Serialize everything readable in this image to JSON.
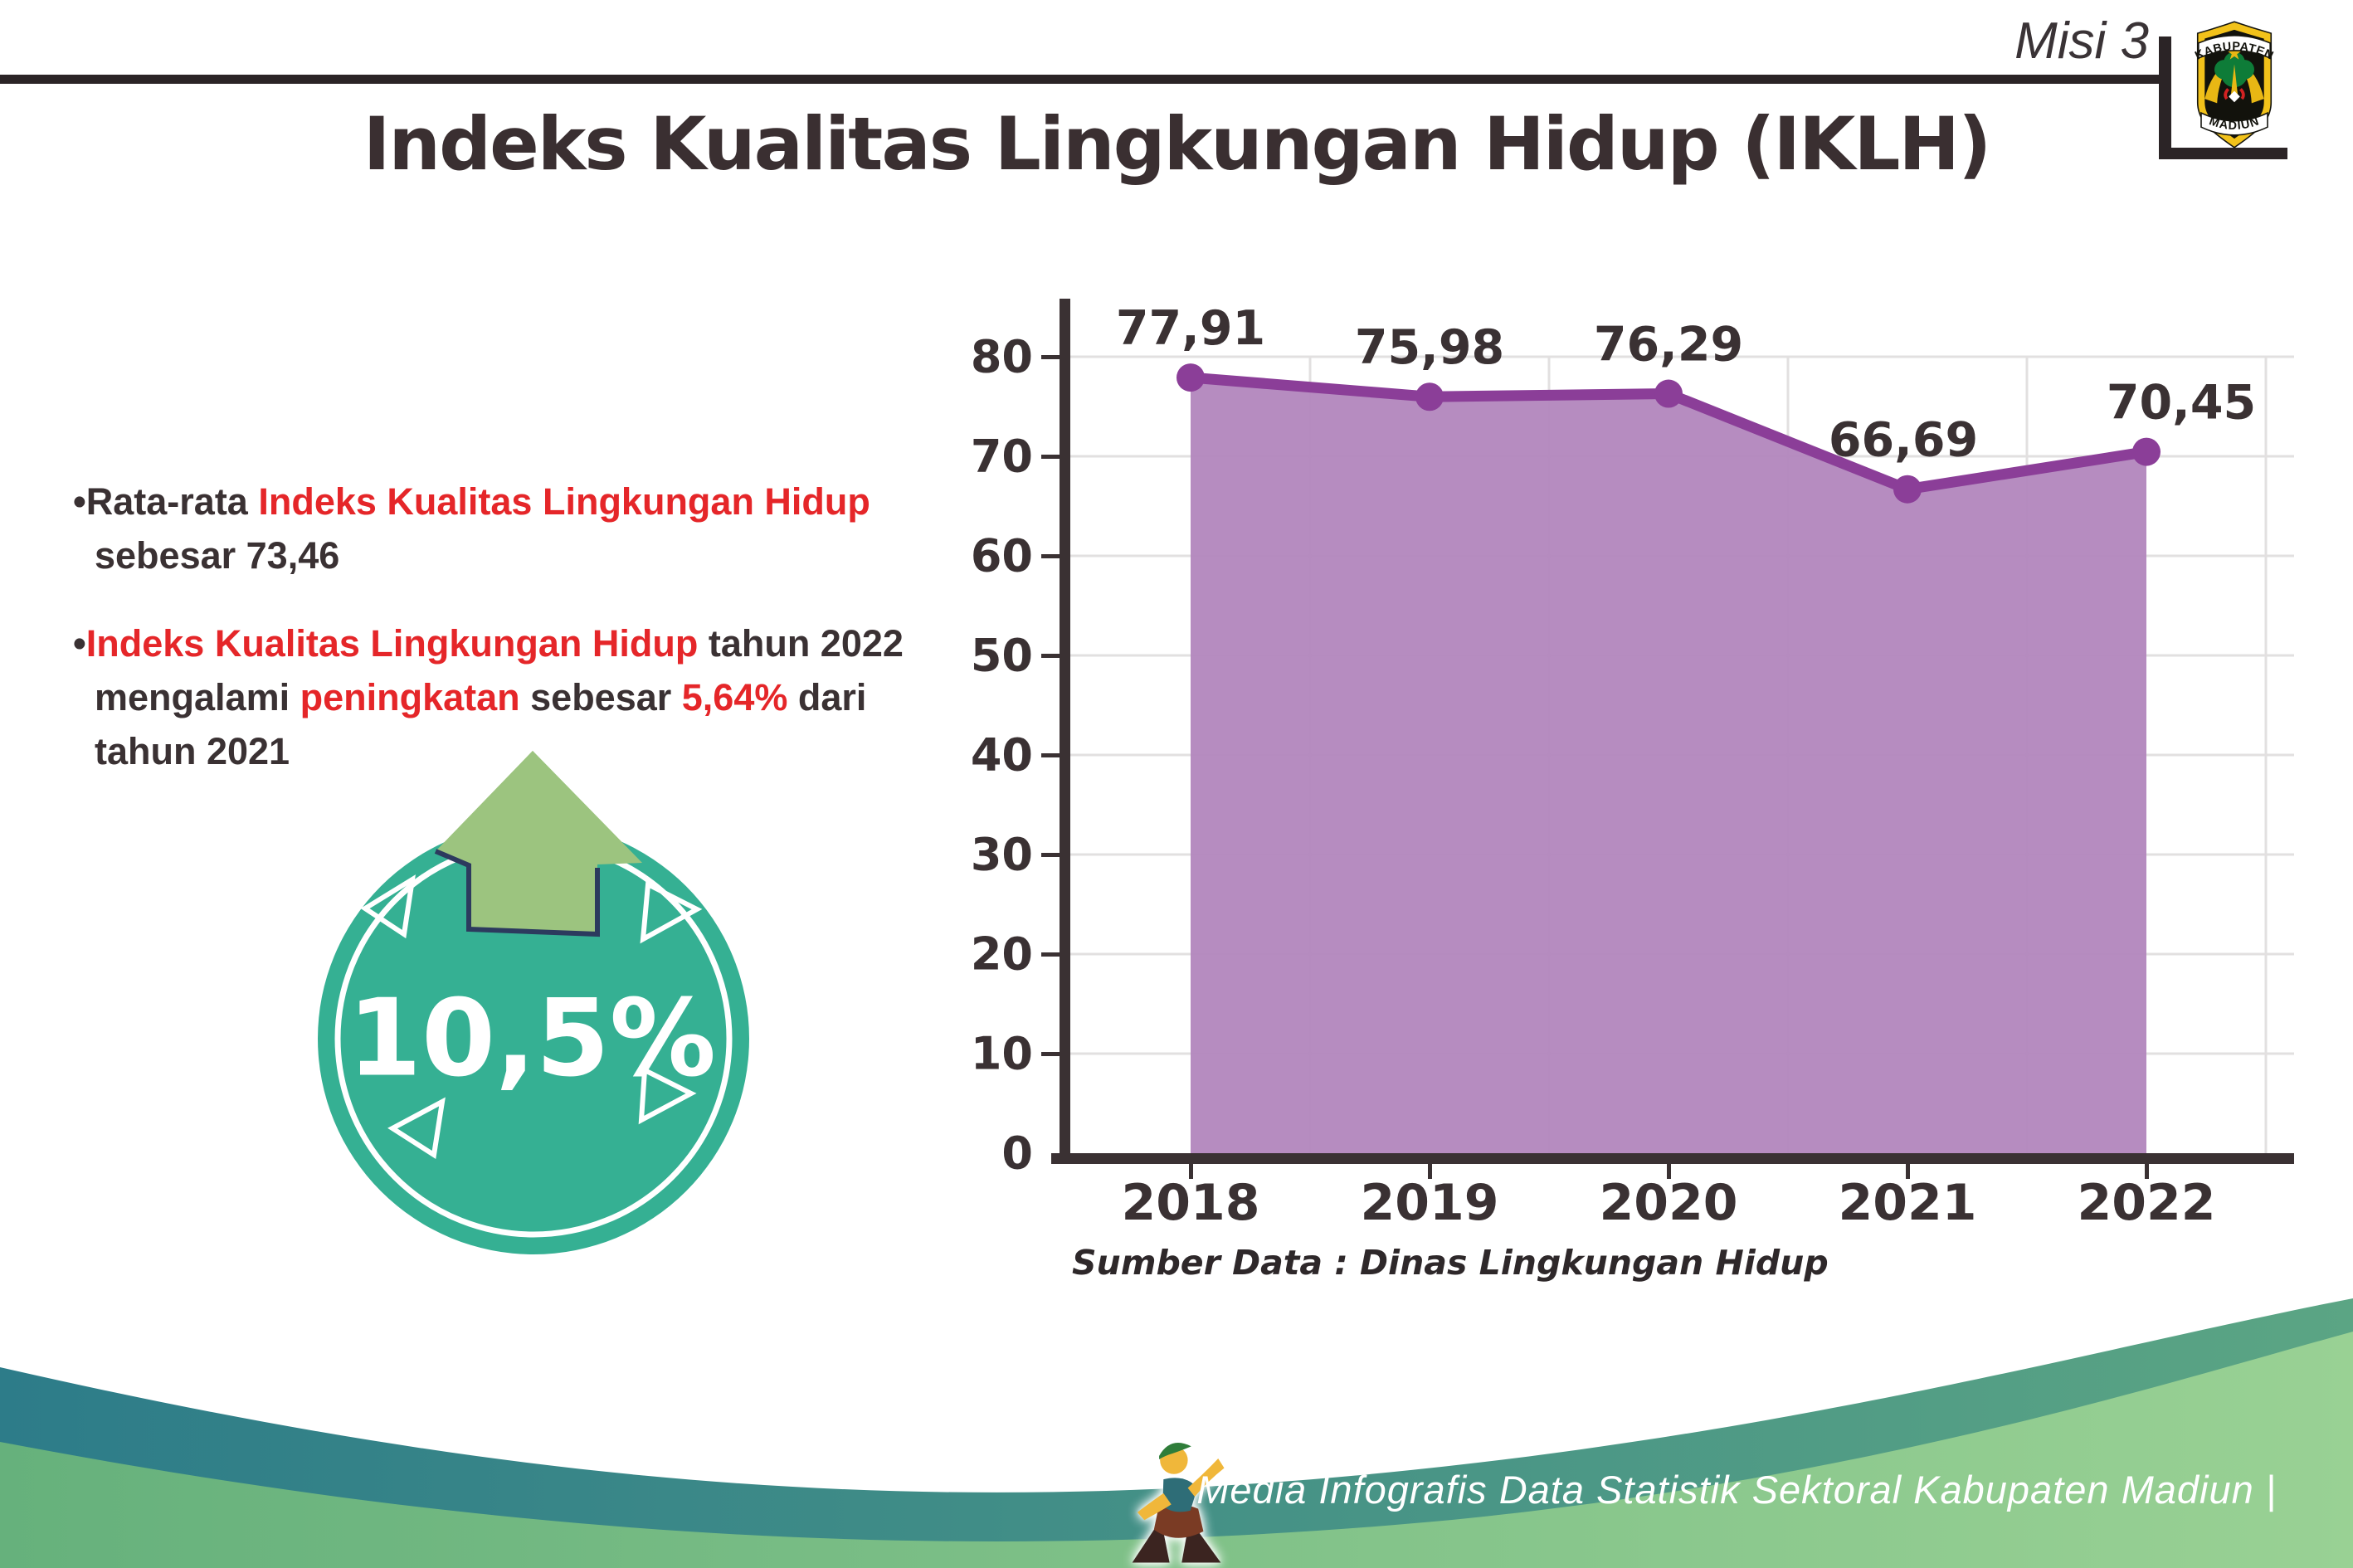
{
  "header": {
    "misi_label": "Misi 3",
    "title": "Indeks Kualitas Lingkungan Hidup (IKLH)",
    "logo_top": "KABUPATEN",
    "logo_bottom": "MADIUN"
  },
  "bullets": [
    {
      "marker": "•",
      "segments": [
        {
          "t": "Rata-rata ",
          "c": "dark"
        },
        {
          "t": "Indeks Kualitas Lingkungan Hidup",
          "c": "red"
        },
        {
          "br": true
        },
        {
          "t": "sebesar 73,46",
          "c": "dark"
        }
      ]
    },
    {
      "marker": "•",
      "segments": [
        {
          "t": "Indeks Kualitas Lingkungan Hidup",
          "c": "red"
        },
        {
          "t": " tahun 2022",
          "c": "dark"
        },
        {
          "br": true
        },
        {
          "t": "mengalami ",
          "c": "dark"
        },
        {
          "t": "peningkatan",
          "c": "red"
        },
        {
          "t": " sebesar ",
          "c": "dark"
        },
        {
          "t": "5,64%",
          "c": "red"
        },
        {
          "t": " dari",
          "c": "dark"
        },
        {
          "br": true
        },
        {
          "t": "tahun 2021",
          "c": "dark"
        }
      ]
    }
  ],
  "badge": {
    "value": "10,5%"
  },
  "chart_data": {
    "type": "area",
    "title": "",
    "categories": [
      "2018",
      "2019",
      "2020",
      "2021",
      "2022"
    ],
    "values": [
      77.91,
      75.98,
      76.29,
      66.69,
      70.45
    ],
    "value_labels": [
      "77,91",
      "75,98",
      "76,29",
      "66,69",
      "70,45"
    ],
    "series_name": "IKLH",
    "xlabel": "",
    "ylabel": "",
    "ylim": [
      0,
      85
    ],
    "yticks": [
      0,
      10,
      20,
      30,
      40,
      50,
      60,
      70,
      80
    ],
    "grid": true,
    "legend": false,
    "source_note": "Sumber Data : Dinas Lingkungan Hidup"
  },
  "footer": {
    "caption": "Media Infografis Data Statistik Sektoral Kabupaten Madiun |"
  },
  "colors": {
    "accent_red": "#e52629",
    "text_dark": "#3a3133",
    "axis": "#3a3133",
    "grid": "#e2e0e0",
    "area_fill": "#b286bd",
    "line": "#8b3e98",
    "badge_teal": "#35b093",
    "badge_arrow_green": "#9cc47f",
    "arrow_outline_navy": "#2c3a5e",
    "footer_teal_start": "#2d7c89",
    "footer_teal_end": "#5ba584",
    "footer_green_start": "#66b17c",
    "footer_green_end": "#99d194"
  }
}
